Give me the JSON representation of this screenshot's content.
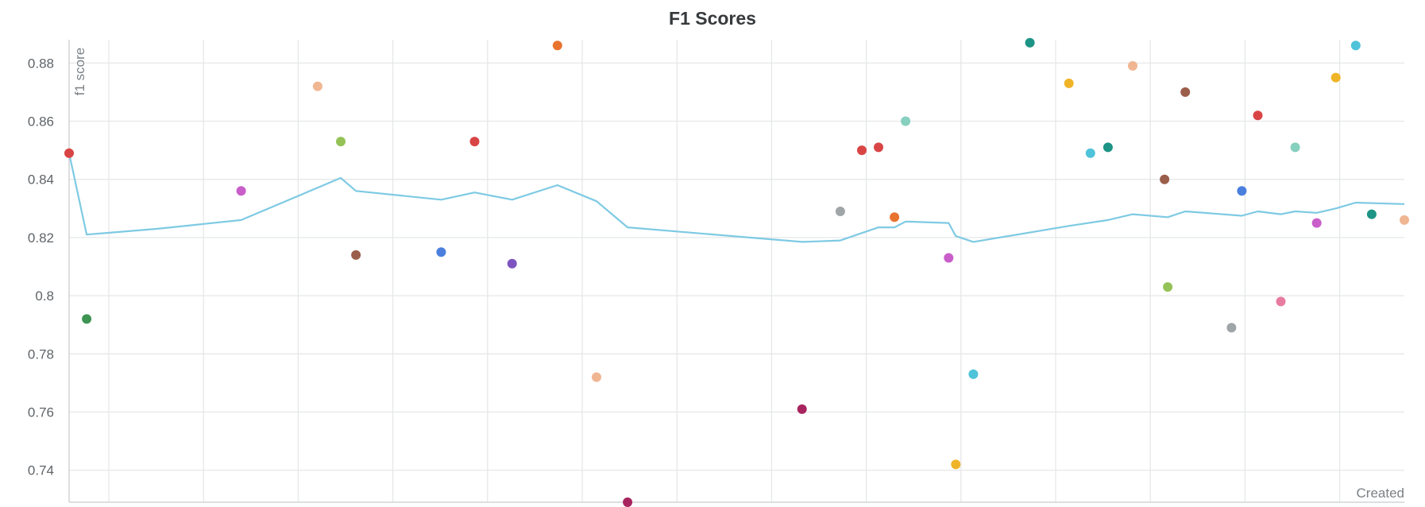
{
  "chart_data": {
    "type": "scatter",
    "title": "F1 Scores",
    "ylabel": "f1 score",
    "xlabel": "Created",
    "ylim": [
      0.729,
      0.888
    ],
    "yticks": [
      0.74,
      0.76,
      0.78,
      0.8,
      0.82,
      0.84,
      0.86,
      0.88
    ],
    "ytick_labels": [
      "0.74",
      "0.76",
      "0.78",
      "0.8",
      "0.82",
      "0.84",
      "0.86",
      "0.88"
    ],
    "x_gridlines": 14,
    "grid": true,
    "points": [
      {
        "x": 0,
        "y": 0.849,
        "color": "#d94545"
      },
      {
        "x": 2.2,
        "y": 0.792,
        "color": "#3e9452"
      },
      {
        "x": 21.6,
        "y": 0.836,
        "color": "#c95dc9"
      },
      {
        "x": 31.2,
        "y": 0.872,
        "color": "#f0b692"
      },
      {
        "x": 34.1,
        "y": 0.853,
        "color": "#94c257"
      },
      {
        "x": 36.0,
        "y": 0.814,
        "color": "#9a5e4a"
      },
      {
        "x": 46.7,
        "y": 0.815,
        "color": "#4a7fde"
      },
      {
        "x": 50.9,
        "y": 0.853,
        "color": "#d94545"
      },
      {
        "x": 55.6,
        "y": 0.811,
        "color": "#7d54c0"
      },
      {
        "x": 61.3,
        "y": 0.886,
        "color": "#e8732f"
      },
      {
        "x": 66.2,
        "y": 0.772,
        "color": "#f0b692"
      },
      {
        "x": 70.1,
        "y": 0.729,
        "color": "#a8245f"
      },
      {
        "x": 92.0,
        "y": 0.761,
        "color": "#a8245f"
      },
      {
        "x": 96.8,
        "y": 0.829,
        "color": "#a0a5a8"
      },
      {
        "x": 99.5,
        "y": 0.85,
        "color": "#d94545"
      },
      {
        "x": 101.6,
        "y": 0.851,
        "color": "#d94545"
      },
      {
        "x": 103.6,
        "y": 0.827,
        "color": "#e8732f"
      },
      {
        "x": 105.0,
        "y": 0.86,
        "color": "#87cfbe"
      },
      {
        "x": 110.4,
        "y": 0.813,
        "color": "#c95dc9"
      },
      {
        "x": 111.3,
        "y": 0.742,
        "color": "#f0b428"
      },
      {
        "x": 113.5,
        "y": 0.773,
        "color": "#4fc3d9"
      },
      {
        "x": 120.6,
        "y": 0.887,
        "color": "#1d9485"
      },
      {
        "x": 125.5,
        "y": 0.873,
        "color": "#f0b428"
      },
      {
        "x": 128.2,
        "y": 0.849,
        "color": "#4fc3d9"
      },
      {
        "x": 130.4,
        "y": 0.851,
        "color": "#1d9485"
      },
      {
        "x": 133.5,
        "y": 0.879,
        "color": "#f0b692"
      },
      {
        "x": 137.5,
        "y": 0.84,
        "color": "#9a5e4a"
      },
      {
        "x": 137.9,
        "y": 0.803,
        "color": "#94c257"
      },
      {
        "x": 140.1,
        "y": 0.87,
        "color": "#9a5e4a"
      },
      {
        "x": 145.9,
        "y": 0.789,
        "color": "#a0a5a8"
      },
      {
        "x": 147.2,
        "y": 0.836,
        "color": "#4a7fde"
      },
      {
        "x": 149.2,
        "y": 0.862,
        "color": "#d94545"
      },
      {
        "x": 152.1,
        "y": 0.798,
        "color": "#e87ca0"
      },
      {
        "x": 153.9,
        "y": 0.851,
        "color": "#87cfbe"
      },
      {
        "x": 156.6,
        "y": 0.825,
        "color": "#c95dc9"
      },
      {
        "x": 159.0,
        "y": 0.875,
        "color": "#f0b428"
      },
      {
        "x": 161.5,
        "y": 0.886,
        "color": "#4fc3d9"
      },
      {
        "x": 163.5,
        "y": 0.828,
        "color": "#1d9485"
      },
      {
        "x": 167.6,
        "y": 0.826,
        "color": "#f0b692"
      }
    ],
    "series": [
      {
        "type": "line",
        "color": "#7ecae3",
        "x": [
          0,
          2.2,
          11.1,
          21.6,
          34.1,
          36.0,
          46.7,
          50.9,
          55.6,
          61.3,
          66.2,
          70.1,
          92.0,
          96.8,
          101.6,
          103.6,
          105.0,
          110.4,
          111.3,
          113.5,
          125.5,
          130.4,
          133.5,
          137.9,
          140.1,
          147.2,
          149.2,
          152.1,
          153.9,
          156.6,
          159.0,
          161.5,
          167.6
        ],
        "y": [
          0.849,
          0.821,
          0.823,
          0.826,
          0.8405,
          0.836,
          0.833,
          0.8355,
          0.833,
          0.838,
          0.8325,
          0.8235,
          0.8185,
          0.819,
          0.8235,
          0.8235,
          0.8255,
          0.825,
          0.8205,
          0.8185,
          0.824,
          0.826,
          0.828,
          0.827,
          0.829,
          0.8275,
          0.829,
          0.828,
          0.829,
          0.8285,
          0.83,
          0.832,
          0.8315
        ]
      }
    ]
  }
}
